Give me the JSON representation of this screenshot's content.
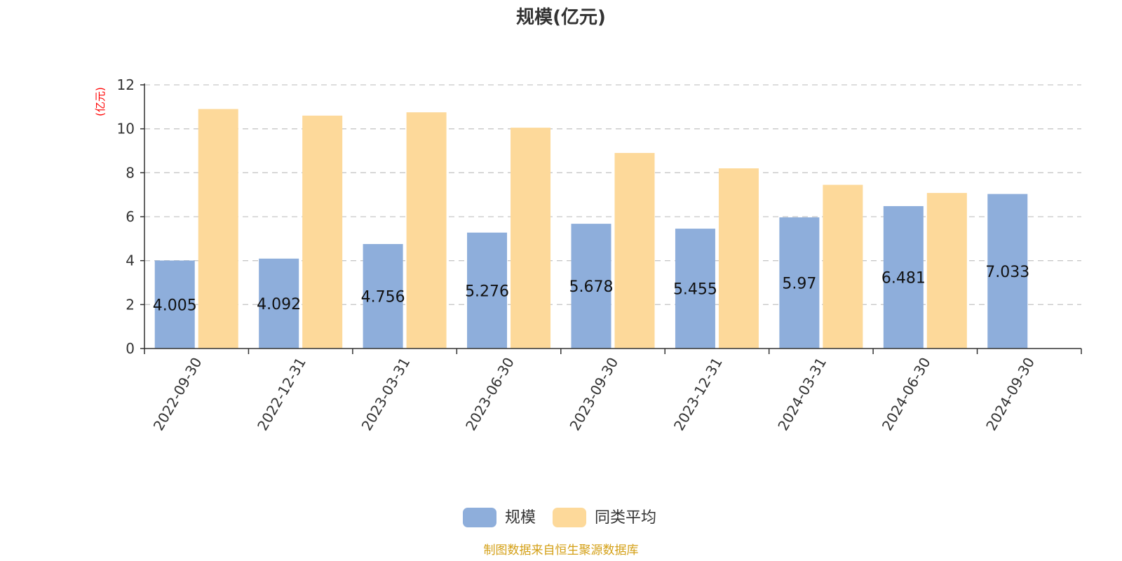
{
  "chart_data": {
    "type": "bar",
    "title": "规模(亿元)",
    "ylabel": "(亿元)",
    "ylim": [
      0,
      12
    ],
    "yticks": [
      0,
      2,
      4,
      6,
      8,
      10,
      12
    ],
    "grid": true,
    "legend_position": "bottom",
    "categories": [
      "2022-09-30",
      "2022-12-31",
      "2023-03-31",
      "2023-06-30",
      "2023-09-30",
      "2023-12-31",
      "2024-03-31",
      "2024-06-30",
      "2024-09-30"
    ],
    "series": [
      {
        "name": "规模",
        "color": "#8eaedb",
        "values": [
          4.005,
          4.092,
          4.756,
          5.276,
          5.678,
          5.455,
          5.97,
          6.481,
          7.033
        ],
        "labels": [
          "4.005",
          "4.092",
          "4.756",
          "5.276",
          "5.678",
          "5.455",
          "5.97",
          "6.481",
          "7.033"
        ]
      },
      {
        "name": "同类平均",
        "color": "#fdd99a",
        "values": [
          10.9,
          10.6,
          10.75,
          10.05,
          8.9,
          8.2,
          7.45,
          7.08,
          null
        ]
      }
    ],
    "source": "制图数据来自恒生聚源数据库"
  }
}
